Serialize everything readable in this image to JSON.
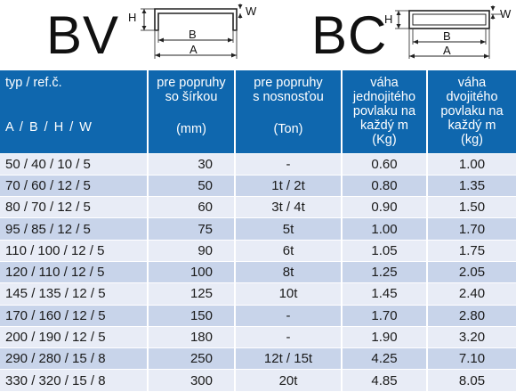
{
  "profiles": {
    "bv": {
      "title": "BV",
      "labels": {
        "h": "H",
        "w": "W",
        "b": "B",
        "a": "A"
      }
    },
    "bc": {
      "title": "BC",
      "labels": {
        "h": "H",
        "w": "W",
        "b": "B",
        "a": "A"
      }
    }
  },
  "table": {
    "headers": [
      {
        "text": "typ / ref.č.",
        "units": "A / B / H / W"
      },
      {
        "text": "pre popruhy\nso šírkou",
        "units": "(mm)"
      },
      {
        "text": "pre popruhy\ns nosnosťou",
        "units": "(Ton)"
      },
      {
        "text": "váha\njednojitého\npovlaku na\nkaždý m",
        "units": "(Kg)"
      },
      {
        "text": "váha\ndvojitého\npovlaku na\nkaždý m",
        "units": "(kg)"
      }
    ],
    "rows": [
      [
        "50 / 40 / 10 / 5",
        "30",
        "-",
        "0.60",
        "1.00"
      ],
      [
        "70 / 60 / 12 / 5",
        "50",
        "1t / 2t",
        "0.80",
        "1.35"
      ],
      [
        "80 / 70 / 12 / 5",
        "60",
        "3t / 4t",
        "0.90",
        "1.50"
      ],
      [
        "95 / 85 / 12 / 5",
        "75",
        "5t",
        "1.00",
        "1.70"
      ],
      [
        "110 / 100 / 12 / 5",
        "90",
        "6t",
        "1.05",
        "1.75"
      ],
      [
        "120 / 110 / 12 / 5",
        "100",
        "8t",
        "1.25",
        "2.05"
      ],
      [
        "145 / 135 / 12 / 5",
        "125",
        "10t",
        "1.45",
        "2.40"
      ],
      [
        "170 / 160 / 12 / 5",
        "150",
        "-",
        "1.70",
        "2.80"
      ],
      [
        "200 / 190 / 12 / 5",
        "180",
        "-",
        "1.90",
        "3.20"
      ],
      [
        "290 / 280 / 15 / 8",
        "250",
        "12t / 15t",
        "4.25",
        "7.10"
      ],
      [
        "330 / 320 / 15 / 8",
        "300",
        "20t",
        "4.85",
        "8.05"
      ]
    ]
  },
  "colors": {
    "header_bg": "#0f67ae",
    "row_light": "#e8ecf6",
    "row_dark": "#c8d4ea"
  }
}
